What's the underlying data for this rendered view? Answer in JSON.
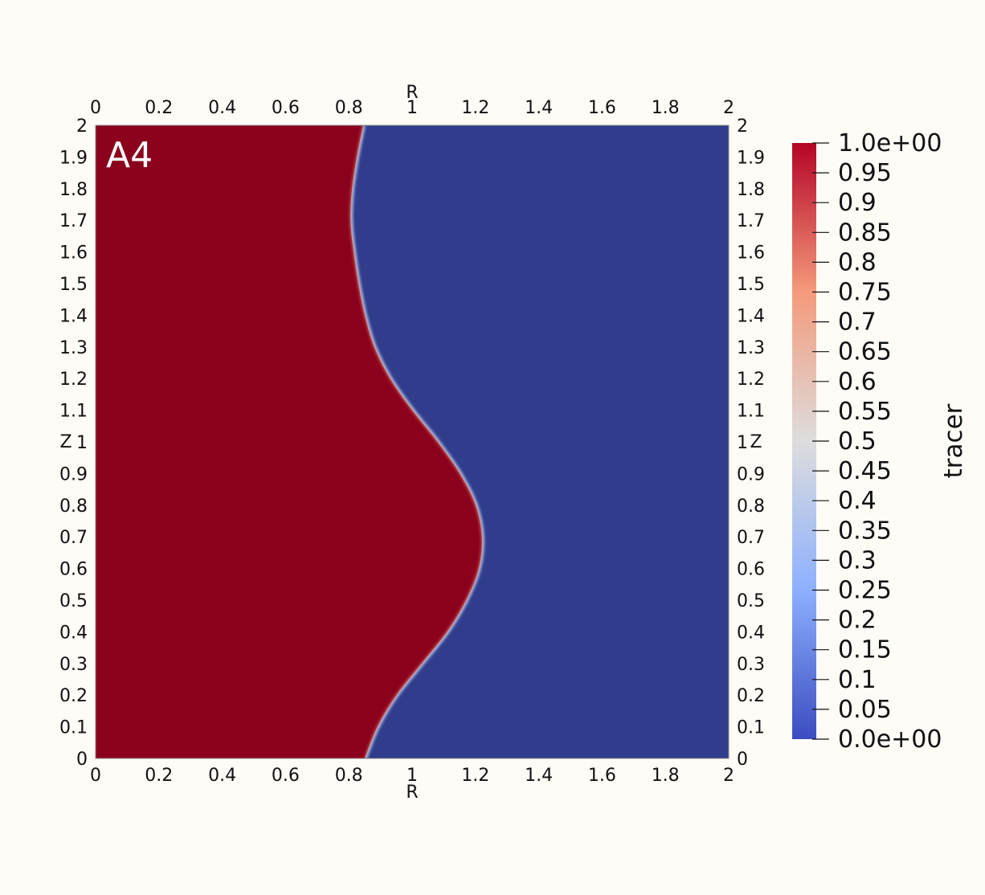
{
  "chart_data": {
    "type": "heatmap",
    "panel_label": "A4",
    "xlabel": "R",
    "ylabel": "Z",
    "xlim": [
      0,
      2
    ],
    "ylim": [
      0,
      2
    ],
    "x_ticks": [
      "0",
      "0.2",
      "0.4",
      "0.6",
      "0.8",
      "1",
      "1.2",
      "1.4",
      "1.6",
      "1.8",
      "2"
    ],
    "y_ticks": [
      "0",
      "0.1",
      "0.2",
      "0.3",
      "0.4",
      "0.5",
      "0.6",
      "0.7",
      "0.8",
      "0.9",
      "1",
      "1.1",
      "1.2",
      "1.3",
      "1.4",
      "1.5",
      "1.6",
      "1.7",
      "1.8",
      "1.9",
      "2"
    ],
    "field": "tracer",
    "field_range": [
      0,
      1
    ],
    "inside_value": 1,
    "outside_value": 0,
    "inside_color": "#8b001c",
    "outside_color": "#303d8c",
    "interface": {
      "z": [
        0,
        0.1,
        0.2,
        0.3,
        0.4,
        0.5,
        0.6,
        0.7,
        0.8,
        0.9,
        1.0,
        1.1,
        1.2,
        1.3,
        1.4,
        1.5,
        1.6,
        1.7,
        1.8,
        1.9,
        2.0
      ],
      "r": [
        0.85,
        0.89,
        0.95,
        1.03,
        1.11,
        1.17,
        1.21,
        1.22,
        1.2,
        1.15,
        1.08,
        1.0,
        0.93,
        0.88,
        0.85,
        0.83,
        0.815,
        0.805,
        0.81,
        0.825,
        0.845
      ]
    },
    "colorbar": {
      "title": "tracer",
      "labels": [
        "0.0e+00",
        "0.05",
        "0.1",
        "0.15",
        "0.2",
        "0.25",
        "0.3",
        "0.35",
        "0.4",
        "0.45",
        "0.5",
        "0.55",
        "0.6",
        "0.65",
        "0.7",
        "0.75",
        "0.8",
        "0.85",
        "0.9",
        "0.95",
        "1.0e+00"
      ],
      "colors": [
        {
          "v": 0.0,
          "c": "#3b4cc0"
        },
        {
          "v": 0.25,
          "c": "#8db0fe"
        },
        {
          "v": 0.5,
          "c": "#dddddd"
        },
        {
          "v": 0.75,
          "c": "#f49a7b"
        },
        {
          "v": 1.0,
          "c": "#b40426"
        }
      ]
    }
  }
}
